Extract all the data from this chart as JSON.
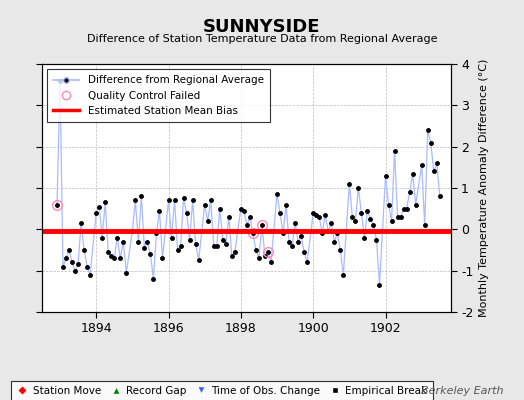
{
  "title": "SUNNYSIDE",
  "subtitle": "Difference of Station Temperature Data from Regional Average",
  "ylabel": "Monthly Temperature Anomaly Difference (°C)",
  "xlabel_years": [
    1894,
    1896,
    1898,
    1900,
    1902
  ],
  "xlim": [
    1892.5,
    1903.8
  ],
  "ylim": [
    -2,
    4
  ],
  "yticks": [
    -2,
    -1,
    0,
    1,
    2,
    3,
    4
  ],
  "bias_value": -0.05,
  "background_color": "#e8e8e8",
  "plot_bg_color": "#ffffff",
  "line_color": "#5577ee",
  "line_color_light": "#aabbff",
  "marker_color": "#000000",
  "bias_color": "#ff0000",
  "qc_color": "#ff88bb",
  "watermark": "Berkeley Earth",
  "data_x": [
    1892.917,
    1893.0,
    1893.083,
    1893.167,
    1893.25,
    1893.333,
    1893.417,
    1893.5,
    1893.583,
    1893.667,
    1893.75,
    1893.833,
    1894.0,
    1894.083,
    1894.167,
    1894.25,
    1894.333,
    1894.417,
    1894.5,
    1894.583,
    1894.667,
    1894.75,
    1894.833,
    1895.0,
    1895.083,
    1895.167,
    1895.25,
    1895.333,
    1895.417,
    1895.5,
    1895.583,
    1895.667,
    1895.75,
    1895.833,
    1896.0,
    1896.083,
    1896.167,
    1896.25,
    1896.333,
    1896.417,
    1896.5,
    1896.583,
    1896.667,
    1896.75,
    1896.833,
    1897.0,
    1897.083,
    1897.167,
    1897.25,
    1897.333,
    1897.417,
    1897.5,
    1897.583,
    1897.667,
    1897.75,
    1897.833,
    1898.0,
    1898.083,
    1898.167,
    1898.25,
    1898.333,
    1898.417,
    1898.5,
    1898.583,
    1898.667,
    1898.75,
    1898.833,
    1899.0,
    1899.083,
    1899.167,
    1899.25,
    1899.333,
    1899.417,
    1899.5,
    1899.583,
    1899.667,
    1899.75,
    1899.833,
    1900.0,
    1900.083,
    1900.167,
    1900.25,
    1900.333,
    1900.417,
    1900.5,
    1900.583,
    1900.667,
    1900.75,
    1900.833,
    1901.0,
    1901.083,
    1901.167,
    1901.25,
    1901.333,
    1901.417,
    1901.5,
    1901.583,
    1901.667,
    1901.75,
    1901.833,
    1902.0,
    1902.083,
    1902.167,
    1902.25,
    1902.333,
    1902.417,
    1902.5,
    1902.583,
    1902.667,
    1902.75,
    1902.833,
    1903.0,
    1903.083,
    1903.167,
    1903.25,
    1903.333,
    1903.417,
    1903.5
  ],
  "data_y": [
    0.6,
    3.6,
    -0.9,
    -0.7,
    -0.5,
    -0.8,
    -1.0,
    -0.85,
    0.15,
    -0.5,
    -0.9,
    -1.1,
    0.4,
    0.55,
    -0.2,
    0.65,
    -0.55,
    -0.65,
    -0.7,
    -0.2,
    -0.7,
    -0.3,
    -1.05,
    -0.05,
    0.7,
    -0.3,
    0.8,
    -0.45,
    -0.3,
    -0.6,
    -1.2,
    -0.1,
    0.45,
    -0.7,
    0.7,
    -0.2,
    0.7,
    -0.5,
    -0.4,
    0.75,
    0.4,
    -0.25,
    0.7,
    -0.35,
    -0.75,
    0.6,
    0.2,
    0.7,
    -0.4,
    -0.4,
    0.5,
    -0.25,
    -0.35,
    0.3,
    -0.65,
    -0.55,
    0.5,
    0.45,
    0.1,
    0.3,
    -0.1,
    -0.5,
    -0.7,
    0.1,
    -0.65,
    -0.55,
    -0.8,
    0.85,
    0.4,
    -0.1,
    0.6,
    -0.3,
    -0.4,
    0.15,
    -0.3,
    -0.15,
    -0.55,
    -0.8,
    0.4,
    0.35,
    0.3,
    -0.1,
    0.35,
    -0.05,
    0.15,
    -0.3,
    -0.1,
    -0.5,
    -1.1,
    1.1,
    0.3,
    0.2,
    1.0,
    0.4,
    -0.2,
    0.45,
    0.25,
    0.1,
    -0.25,
    -1.35,
    1.3,
    0.6,
    0.2,
    1.9,
    0.3,
    0.3,
    0.5,
    0.5,
    0.9,
    1.35,
    0.6,
    1.55,
    0.1,
    2.4,
    2.1,
    1.4,
    1.6,
    0.8
  ],
  "qc_points_x": [
    1892.917,
    1898.333,
    1898.583,
    1898.75
  ],
  "qc_points_y": [
    0.6,
    -0.1,
    0.1,
    -0.55
  ]
}
